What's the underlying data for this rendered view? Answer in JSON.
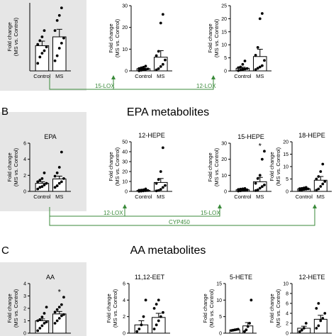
{
  "colors": {
    "panel_bg": "#e6e6e6",
    "axis": "#000000",
    "arrow": "#3a8a3a",
    "bar": "#ffffff",
    "dot": "#000000"
  },
  "sections": [
    {
      "letter": "",
      "title": ""
    },
    {
      "letter": "B",
      "title": "EPA metabolites"
    },
    {
      "letter": "C",
      "title": "AA metabolites"
    }
  ],
  "arrows": [
    {
      "labels": [
        "15-LOX",
        "12-LOX"
      ]
    },
    {
      "labels": [
        "12-LOX",
        "15-LOX"
      ],
      "extra": "CYP450"
    }
  ],
  "chart_data": [
    {
      "type": "bar",
      "title": "",
      "ylabel": "Fold change\n(MS vs. Control)",
      "categories": [
        "Control",
        "MS"
      ],
      "values": [
        1.0,
        1.35
      ],
      "errors": [
        0.18,
        0.3
      ],
      "ylim": [
        0,
        2.7
      ],
      "yticks": [],
      "sig": "",
      "points": [
        [
          0.3,
          0.55,
          0.7,
          0.8,
          0.95,
          1.05,
          1.2,
          1.35,
          1.6
        ],
        [
          0.4,
          0.6,
          0.9,
          1.1,
          1.3,
          1.6,
          2.0,
          2.2,
          2.5
        ]
      ]
    },
    {
      "type": "bar",
      "title": "",
      "ylabel": "Fold change\n(MS vs. Control)",
      "categories": [
        "Control",
        "MS"
      ],
      "values": [
        1.0,
        6.3
      ],
      "errors": [
        0.3,
        3.0
      ],
      "ylim": [
        0,
        30
      ],
      "yticks": [
        0,
        10,
        20,
        30
      ],
      "sig": "",
      "points": [
        [
          0.1,
          0.3,
          0.5,
          0.7,
          0.9,
          1.1,
          1.4,
          1.7,
          2.2
        ],
        [
          0.5,
          1,
          2,
          3,
          5,
          7,
          9,
          22,
          26
        ]
      ]
    },
    {
      "type": "bar",
      "title": "",
      "ylabel": "Fold change\n(MS vs. Control)",
      "categories": [
        "Control",
        "MS"
      ],
      "values": [
        1.0,
        5.5
      ],
      "errors": [
        0.4,
        2.8
      ],
      "ylim": [
        0,
        25
      ],
      "yticks": [
        0,
        5,
        10,
        15,
        20,
        25
      ],
      "sig": "",
      "points": [
        [
          0.1,
          0.3,
          0.5,
          0.7,
          0.9,
          1.2,
          1.5,
          2.5,
          3.8
        ],
        [
          0.5,
          1,
          1.5,
          2,
          4,
          6,
          9,
          20,
          22
        ]
      ]
    },
    {
      "type": "bar",
      "title": "EPA",
      "ylabel": "Fold change\n(MS vs. Control)",
      "categories": [
        "Control",
        "MS"
      ],
      "values": [
        1.0,
        1.55
      ],
      "errors": [
        0.2,
        0.35
      ],
      "ylim": [
        0,
        6
      ],
      "yticks": [
        0,
        2,
        4,
        6
      ],
      "sig": "",
      "points": [
        [
          0.3,
          0.5,
          0.6,
          0.8,
          1.0,
          1.2,
          1.4,
          1.6,
          2.3
        ],
        [
          0.5,
          0.7,
          1.0,
          1.2,
          1.6,
          1.9,
          2.3,
          3.0,
          4.9
        ]
      ]
    },
    {
      "type": "bar",
      "title": "12-HEPE",
      "ylabel": "Fold change\n(MS vs. Control)",
      "categories": [
        "Control",
        "MS"
      ],
      "values": [
        1.0,
        9.0
      ],
      "errors": [
        0.3,
        4.0
      ],
      "ylim": [
        0,
        50
      ],
      "yticks": [
        0,
        10,
        20,
        30,
        40,
        50
      ],
      "sig": "",
      "points": [
        [
          0.1,
          0.3,
          0.5,
          0.7,
          0.9,
          1.1,
          1.3,
          1.6,
          2.5
        ],
        [
          0.5,
          1,
          2,
          4,
          6,
          8,
          12,
          20,
          44
        ]
      ]
    },
    {
      "type": "bar",
      "title": "15-HEPE",
      "ylabel": "Fold change\n(MS vs. Control)",
      "categories": [
        "Control",
        "MS"
      ],
      "values": [
        1.0,
        6.0
      ],
      "errors": [
        0.2,
        2.7
      ],
      "ylim": [
        0,
        30
      ],
      "yticks": [
        0,
        10,
        20,
        30
      ],
      "sig": "*",
      "points": [
        [
          0.2,
          0.4,
          0.6,
          0.8,
          1.0,
          1.2,
          1.4,
          1.6,
          1.8
        ],
        [
          0.5,
          1,
          2,
          3,
          4,
          5,
          8,
          10,
          20,
          25
        ]
      ]
    },
    {
      "type": "bar",
      "title": "18-HEPE",
      "ylabel": "Fold change\n(MS vs. Control)",
      "categories": [
        "Control",
        "MS"
      ],
      "values": [
        1.0,
        4.5
      ],
      "errors": [
        0.15,
        1.5
      ],
      "ylim": [
        0,
        20
      ],
      "yticks": [
        0,
        5,
        10,
        15,
        20
      ],
      "sig": "",
      "points": [
        [
          0.4,
          0.6,
          0.8,
          0.9,
          1.0,
          1.1,
          1.2,
          1.4,
          1.6
        ],
        [
          0.5,
          1,
          2,
          3,
          4,
          5,
          6,
          8,
          11
        ]
      ]
    },
    {
      "type": "bar",
      "title": "AA",
      "ylabel": "Fold change\n(MS vs. Control)",
      "categories": [
        "Control",
        "MS"
      ],
      "values": [
        1.0,
        1.55
      ],
      "errors": [
        0.15,
        0.2
      ],
      "ylim": [
        0,
        4
      ],
      "yticks": [
        0,
        1,
        2,
        3,
        4
      ],
      "sig": "*",
      "points": [
        [
          0.2,
          0.4,
          0.6,
          0.8,
          0.9,
          1.0,
          1.1,
          1.3,
          1.6,
          2.1
        ],
        [
          0.8,
          1.0,
          1.2,
          1.4,
          1.5,
          1.7,
          1.9,
          2.1,
          2.3,
          2.9
        ]
      ]
    },
    {
      "type": "bar",
      "title": "11,12-EET",
      "ylabel": "Fold change\n(MS vs. Control)",
      "categories": [
        "Control",
        "MS"
      ],
      "values": [
        1.0,
        1.9
      ],
      "errors": [
        0.5,
        0.5
      ],
      "ylim": [
        0,
        6
      ],
      "yticks": [
        0,
        2,
        4,
        6
      ],
      "sig": "",
      "points": [
        [
          0.2,
          0.5,
          1.0,
          2.0,
          4.0
        ],
        [
          0.5,
          1.0,
          1.5,
          2.0,
          2.5,
          3.0,
          3.5,
          4.0
        ]
      ]
    },
    {
      "type": "bar",
      "title": "5-HETE",
      "ylabel": "Fold change\n(MS vs. Control)",
      "categories": [
        "Control",
        "MS"
      ],
      "values": [
        1.0,
        2.2
      ],
      "errors": [
        0.1,
        1.0
      ],
      "ylim": [
        0,
        15
      ],
      "yticks": [
        0,
        5,
        10,
        15
      ],
      "sig": "",
      "points": [
        [
          0.8,
          0.9,
          1.0,
          1.1,
          1.2
        ],
        [
          0.5,
          1,
          2,
          3,
          10
        ]
      ]
    },
    {
      "type": "bar",
      "title": "12-HETE",
      "ylabel": "Fold change\n(MS vs. Control)",
      "categories": [
        "Control",
        "MS"
      ],
      "values": [
        1.0,
        2.8
      ],
      "errors": [
        0.4,
        0.8
      ],
      "ylim": [
        0,
        10
      ],
      "yticks": [
        0,
        2,
        4,
        6,
        8,
        10
      ],
      "sig": "",
      "points": [
        [
          0.3,
          0.6,
          1.0,
          2.0
        ],
        [
          1.0,
          1.5,
          2.5,
          3.0,
          4.0,
          5.0,
          6.0
        ]
      ]
    }
  ]
}
